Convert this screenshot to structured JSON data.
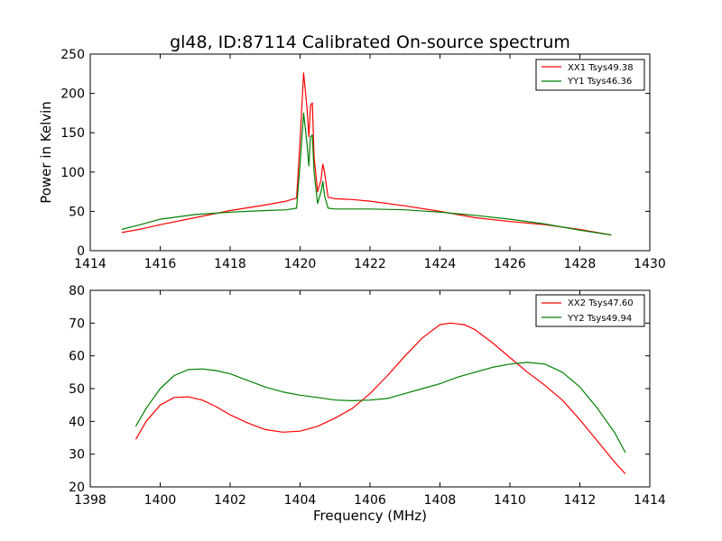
{
  "figure": {
    "title": "gl48, ID:87114 Calibrated On-source spectrum",
    "ylabel": "Power in Kelvin",
    "xlabel": "Frequency (MHz)"
  },
  "chart_data": [
    {
      "type": "line",
      "title": "gl48, ID:87114 Calibrated On-source spectrum",
      "xlabel": "",
      "ylabel": "Power in Kelvin",
      "xlim": [
        1414,
        1430
      ],
      "ylim": [
        0,
        250
      ],
      "xticks": [
        "1414",
        "1416",
        "1418",
        "1420",
        "1422",
        "1424",
        "1426",
        "1428",
        "1430"
      ],
      "yticks": [
        "0",
        "50",
        "100",
        "150",
        "200",
        "250"
      ],
      "legend_position": "top-right",
      "grid": false,
      "series": [
        {
          "name": "XX1 Tsys49.38",
          "color": "#ff0000",
          "x": [
            1414.9,
            1415.5,
            1416,
            1417,
            1418,
            1419,
            1419.6,
            1419.9,
            1420.0,
            1420.1,
            1420.2,
            1420.25,
            1420.3,
            1420.35,
            1420.4,
            1420.5,
            1420.6,
            1420.65,
            1420.7,
            1420.8,
            1421,
            1421.5,
            1422,
            1423,
            1424,
            1425,
            1426,
            1427,
            1428,
            1428.9
          ],
          "y": [
            23,
            28,
            33,
            42,
            51,
            58,
            63,
            67,
            140,
            226,
            180,
            145,
            185,
            188,
            120,
            75,
            90,
            110,
            100,
            68,
            66,
            65,
            63,
            57,
            50,
            42,
            37,
            33,
            27,
            20
          ]
        },
        {
          "name": "YY1 Tsys46.36",
          "color": "#008000",
          "x": [
            1414.9,
            1415.5,
            1416,
            1417,
            1418,
            1419,
            1419.6,
            1419.9,
            1420.0,
            1420.1,
            1420.2,
            1420.25,
            1420.3,
            1420.35,
            1420.4,
            1420.5,
            1420.6,
            1420.65,
            1420.7,
            1420.8,
            1421,
            1421.5,
            1422,
            1423,
            1424,
            1425,
            1426,
            1427,
            1428,
            1428.9
          ],
          "y": [
            27,
            34,
            40,
            46,
            49,
            51,
            52,
            54,
            110,
            175,
            135,
            108,
            145,
            147,
            100,
            60,
            75,
            88,
            70,
            54,
            53,
            53,
            53,
            52,
            49,
            45,
            40,
            34,
            26,
            20
          ]
        }
      ]
    },
    {
      "type": "line",
      "title": "",
      "xlabel": "Frequency (MHz)",
      "ylabel": "",
      "xlim": [
        1398,
        1414
      ],
      "ylim": [
        20,
        80
      ],
      "xticks": [
        "1398",
        "1400",
        "1402",
        "1404",
        "1406",
        "1408",
        "1410",
        "1412",
        "1414"
      ],
      "yticks": [
        "20",
        "30",
        "40",
        "50",
        "60",
        "70",
        "80"
      ],
      "legend_position": "top-right",
      "grid": false,
      "series": [
        {
          "name": "XX2 Tsys47.60",
          "color": "#ff0000",
          "x": [
            1399.3,
            1399.6,
            1400,
            1400.4,
            1400.8,
            1401.2,
            1401.6,
            1402,
            1402.5,
            1403,
            1403.5,
            1404,
            1404.5,
            1405,
            1405.5,
            1406,
            1406.5,
            1407,
            1407.5,
            1408,
            1408.3,
            1408.7,
            1409,
            1409.5,
            1410,
            1410.5,
            1411,
            1411.5,
            1412,
            1412.5,
            1413,
            1413.3
          ],
          "y": [
            34.5,
            40,
            45,
            47.3,
            47.5,
            46.5,
            44.5,
            42,
            39.5,
            37.5,
            36.7,
            37,
            38.5,
            41,
            44,
            48.5,
            54,
            60,
            65.5,
            69.5,
            70,
            69.5,
            68,
            64,
            59.5,
            55,
            51,
            46.5,
            40.5,
            34,
            27.5,
            24
          ]
        },
        {
          "name": "YY2 Tsys49.94",
          "color": "#008000",
          "x": [
            1399.3,
            1399.6,
            1400,
            1400.4,
            1400.8,
            1401.2,
            1401.6,
            1402,
            1402.5,
            1403,
            1403.5,
            1404,
            1404.5,
            1405,
            1405.5,
            1406,
            1406.5,
            1407,
            1407.5,
            1408,
            1408.5,
            1409,
            1409.5,
            1410,
            1410.5,
            1411,
            1411.5,
            1412,
            1412.5,
            1413,
            1413.3
          ],
          "y": [
            38.5,
            44,
            50,
            54,
            55.8,
            56,
            55.5,
            54.5,
            52.5,
            50.5,
            49,
            48,
            47.3,
            46.5,
            46.3,
            46.5,
            47,
            48.5,
            50,
            51.5,
            53.5,
            55,
            56.5,
            57.5,
            58,
            57.5,
            55,
            50.5,
            44,
            36.5,
            30.5
          ]
        }
      ]
    }
  ]
}
